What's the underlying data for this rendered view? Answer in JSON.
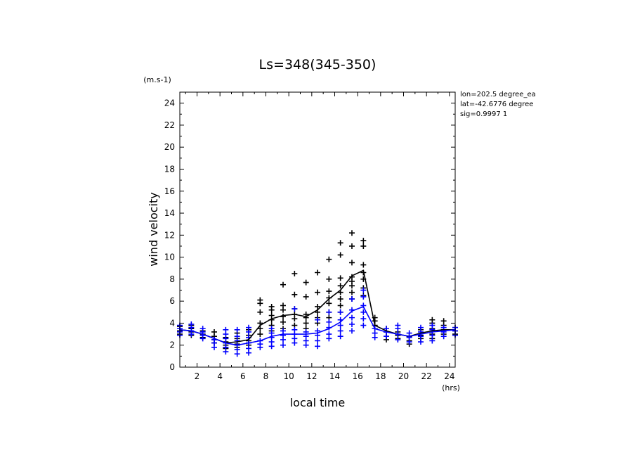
{
  "chart_data": {
    "type": "scatter",
    "title": "Ls=348(345-350)",
    "xlabel": "local time",
    "ylabel": "wind velocity",
    "x_unit": "(hrs)",
    "y_unit": "(m.s-1)",
    "xlim": [
      0.5,
      24.5
    ],
    "ylim": [
      0,
      25
    ],
    "xticks": [
      2,
      4,
      6,
      8,
      10,
      12,
      14,
      16,
      18,
      20,
      22,
      24
    ],
    "yticks": [
      0,
      2,
      4,
      6,
      8,
      10,
      12,
      14,
      16,
      18,
      20,
      22,
      24
    ],
    "annotations": [
      "lon=202.5 degree_ea",
      "lat=-42.6776 degree",
      "sig=0.9997 1"
    ],
    "series": [
      {
        "color": "#000000",
        "line": {
          "x": [
            0.5,
            1.5,
            2.5,
            3.5,
            4.5,
            5.5,
            6.5,
            7.5,
            8.5,
            9.5,
            10.5,
            11.5,
            12.5,
            13.5,
            14.5,
            15.5,
            16.5,
            17.5,
            18.5,
            19.5,
            20.5,
            21.5,
            22.5,
            23.5,
            24.5
          ],
          "y": [
            3.4,
            3.3,
            3.0,
            2.6,
            2.2,
            2.3,
            2.5,
            3.8,
            4.4,
            4.7,
            4.8,
            4.6,
            5.2,
            6.2,
            7.0,
            8.3,
            8.8,
            3.8,
            3.3,
            3.0,
            2.8,
            3.1,
            3.3,
            3.4,
            3.4
          ]
        },
        "points": [
          [
            0.5,
            [
              3.0,
              3.3,
              3.5,
              3.7
            ]
          ],
          [
            1.5,
            [
              2.9,
              3.2,
              3.5,
              3.8
            ]
          ],
          [
            2.5,
            [
              2.7,
              3.0,
              3.3
            ]
          ],
          [
            3.5,
            [
              2.2,
              2.5,
              2.8,
              3.2
            ]
          ],
          [
            4.5,
            [
              1.7,
              2.0,
              2.3,
              2.7
            ]
          ],
          [
            5.5,
            [
              1.8,
              2.1,
              2.6,
              3.1
            ]
          ],
          [
            6.5,
            [
              2.0,
              2.4,
              2.9,
              3.4
            ]
          ],
          [
            7.5,
            [
              3.0,
              3.5,
              4.0,
              5.0,
              5.8,
              6.1
            ]
          ],
          [
            8.5,
            [
              3.3,
              3.8,
              4.3,
              4.7,
              5.2,
              5.5
            ]
          ],
          [
            9.5,
            [
              3.5,
              4.1,
              4.6,
              5.2,
              5.6,
              7.5
            ]
          ],
          [
            10.5,
            [
              3.8,
              4.4,
              4.8,
              5.3,
              6.6,
              8.5
            ]
          ],
          [
            11.5,
            [
              3.5,
              4.0,
              4.5,
              4.8,
              6.4,
              7.7
            ]
          ],
          [
            12.5,
            [
              4.0,
              4.5,
              5.0,
              5.5,
              6.8,
              8.6
            ]
          ],
          [
            13.5,
            [
              4.5,
              5.0,
              5.8,
              6.3,
              6.9,
              8.0,
              9.8
            ]
          ],
          [
            14.5,
            [
              5.0,
              5.6,
              6.2,
              6.8,
              7.4,
              8.1,
              10.2,
              11.3
            ]
          ],
          [
            15.5,
            [
              6.2,
              6.8,
              7.4,
              7.8,
              8.2,
              9.5,
              11.0,
              12.2
            ]
          ],
          [
            16.5,
            [
              6.5,
              7.2,
              8.0,
              8.6,
              9.3,
              11.0,
              11.5
            ]
          ],
          [
            17.5,
            [
              3.5,
              3.8,
              4.2,
              4.5
            ]
          ],
          [
            18.5,
            [
              2.5,
              2.8,
              3.2,
              3.5
            ]
          ],
          [
            19.5,
            [
              2.6,
              2.9,
              3.2
            ]
          ],
          [
            20.5,
            [
              2.1,
              2.4,
              2.8
            ]
          ],
          [
            21.5,
            [
              2.6,
              2.9,
              3.4
            ]
          ],
          [
            22.5,
            [
              2.6,
              3.0,
              3.5,
              4.0,
              4.3
            ]
          ],
          [
            23.5,
            [
              3.0,
              3.4,
              3.8,
              4.2
            ]
          ],
          [
            24.5,
            [
              3.0,
              3.3,
              3.6
            ]
          ]
        ]
      },
      {
        "color": "#0000ff",
        "line": {
          "x": [
            0.5,
            1.5,
            2.5,
            3.5,
            4.5,
            5.5,
            6.5,
            7.5,
            8.5,
            9.5,
            10.5,
            11.5,
            12.5,
            13.5,
            14.5,
            15.5,
            16.5,
            17.5,
            18.5,
            19.5,
            20.5,
            21.5,
            22.5,
            23.5,
            24.5
          ],
          "y": [
            3.4,
            3.3,
            3.0,
            2.6,
            2.2,
            2.0,
            2.2,
            2.4,
            2.8,
            3.0,
            3.0,
            3.0,
            3.1,
            3.5,
            4.1,
            5.1,
            5.5,
            3.5,
            3.2,
            3.0,
            2.8,
            3.0,
            3.2,
            3.3,
            3.4
          ]
        },
        "points": [
          [
            0.5,
            [
              2.9,
              3.2,
              3.5,
              3.8
            ]
          ],
          [
            1.5,
            [
              3.0,
              3.3,
              3.6,
              3.9
            ]
          ],
          [
            2.5,
            [
              2.6,
              2.9,
              3.2,
              3.5
            ]
          ],
          [
            3.5,
            [
              1.8,
              2.2,
              2.5
            ]
          ],
          [
            4.5,
            [
              1.4,
              1.8,
              2.2,
              2.6,
              3.0,
              3.4
            ]
          ],
          [
            5.5,
            [
              1.2,
              1.6,
              2.0,
              2.4,
              2.8,
              3.4
            ]
          ],
          [
            6.5,
            [
              1.3,
              1.7,
              2.2,
              2.7,
              3.2,
              3.6
            ]
          ],
          [
            7.5,
            [
              1.8,
              2.1,
              2.4
            ]
          ],
          [
            8.5,
            [
              1.9,
              2.3,
              2.7,
              3.1,
              3.5
            ]
          ],
          [
            9.5,
            [
              2.0,
              2.5,
              2.9,
              3.3
            ]
          ],
          [
            10.5,
            [
              2.2,
              2.6,
              3.0,
              3.4,
              5.3
            ]
          ],
          [
            11.5,
            [
              2.0,
              2.4,
              2.8,
              3.2
            ]
          ],
          [
            12.5,
            [
              1.9,
              2.4,
              2.9,
              3.3,
              4.3
            ]
          ],
          [
            13.5,
            [
              2.6,
              3.0,
              3.6,
              4.1,
              5.0
            ]
          ],
          [
            14.5,
            [
              2.8,
              3.3,
              3.8,
              4.3,
              5.0
            ]
          ],
          [
            15.5,
            [
              3.3,
              3.9,
              4.5,
              5.2,
              6.2
            ]
          ],
          [
            16.5,
            [
              3.8,
              4.4,
              5.0,
              5.6,
              6.4,
              7.0
            ]
          ],
          [
            17.5,
            [
              2.7,
              3.1,
              3.5
            ]
          ],
          [
            18.5,
            [
              2.8,
              3.2,
              3.5
            ]
          ],
          [
            19.5,
            [
              2.5,
              3.0,
              3.5,
              3.8
            ]
          ],
          [
            20.5,
            [
              2.3,
              2.7,
              3.1
            ]
          ],
          [
            21.5,
            [
              2.3,
              2.8,
              3.2,
              3.6
            ]
          ],
          [
            22.5,
            [
              2.4,
              2.9,
              3.4,
              3.8
            ]
          ],
          [
            23.5,
            [
              2.8,
              3.2,
              3.6
            ]
          ],
          [
            24.5,
            [
              2.9,
              3.3,
              3.6
            ]
          ]
        ]
      }
    ]
  }
}
